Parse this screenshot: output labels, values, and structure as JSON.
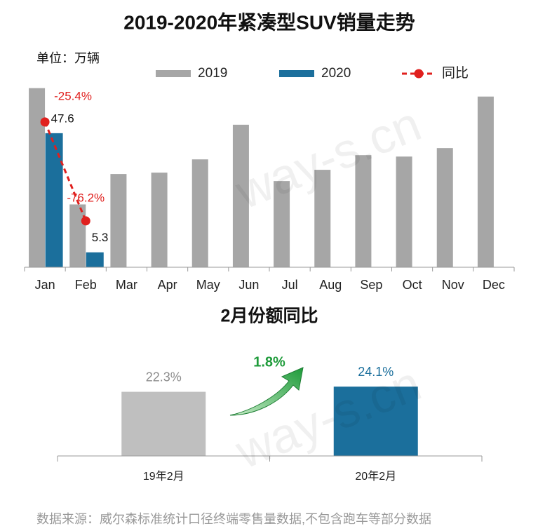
{
  "source": "数据来源：威尔森标准统计口径终端零售量数据,不包含跑车等部分数据",
  "watermark": "way-s.cn",
  "chart_data": [
    {
      "type": "bar",
      "title": "2019-2020年紧凑型SUV销量走势",
      "unit": "单位：万辆",
      "categories": [
        "Jan",
        "Feb",
        "Mar",
        "Apr",
        "May",
        "Jun",
        "Jul",
        "Aug",
        "Sep",
        "Oct",
        "Nov",
        "Dec"
      ],
      "series": [
        {
          "name": "2019",
          "color": "#a6a6a6",
          "values": [
            63.6,
            22.3,
            33.1,
            33.6,
            38.3,
            50.6,
            30.6,
            34.6,
            39.8,
            39.3,
            42.3,
            60.6
          ]
        },
        {
          "name": "2020",
          "color": "#1b6f9c",
          "values": [
            47.6,
            5.3,
            null,
            null,
            null,
            null,
            null,
            null,
            null,
            null,
            null,
            null
          ]
        },
        {
          "name": "同比",
          "type": "line",
          "axis": "y2",
          "color": "#e0201e",
          "values": [
            -25.4,
            -76.2,
            null,
            null,
            null,
            null,
            null,
            null,
            null,
            null,
            null,
            null
          ],
          "value_labels": [
            "-25.4%",
            "-76.2%",
            null,
            null,
            null,
            null,
            null,
            null,
            null,
            null,
            null,
            null
          ]
        }
      ],
      "ylim": [
        0,
        65
      ],
      "y2lim": [
        -100,
        -6
      ]
    },
    {
      "type": "bar",
      "title": "2月份额同比",
      "categories": [
        "19年2月",
        "20年2月"
      ],
      "values": [
        22.3,
        24.1
      ],
      "value_labels": [
        "22.3%",
        "24.1%"
      ],
      "colors": [
        "#bfbfbf",
        "#1b6f9c"
      ],
      "ylim": [
        0,
        30
      ],
      "annotation": "1.8%"
    }
  ]
}
